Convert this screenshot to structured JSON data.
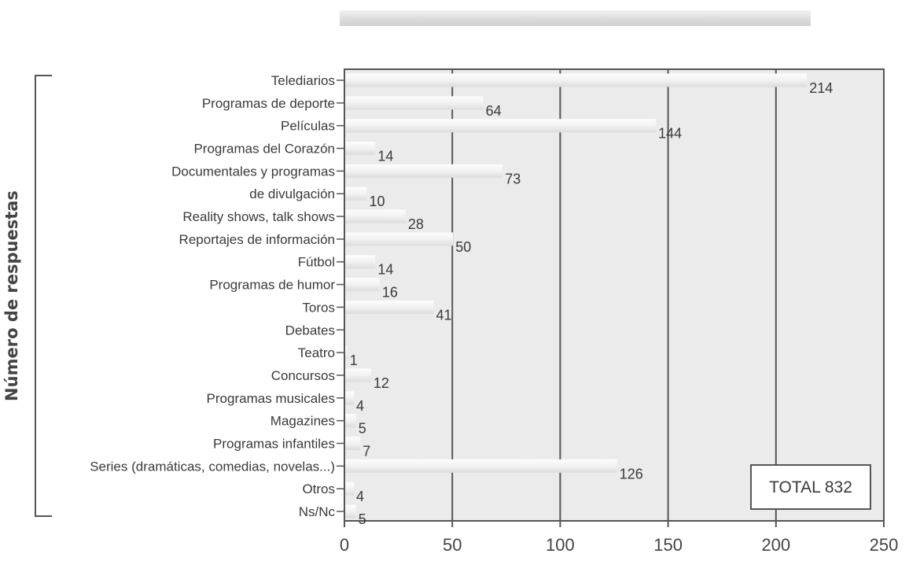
{
  "chart_data": {
    "type": "bar",
    "orientation": "horizontal",
    "title": "",
    "xlabel": "",
    "ylabel": "Número de respuestas",
    "xlim": [
      0,
      250
    ],
    "xticks": [
      0,
      50,
      100,
      150,
      200,
      250
    ],
    "grid": true,
    "categories": [
      "Telediarios",
      "Programas de deporte",
      "Películas",
      "Programas del Corazón",
      "Documentales y programas",
      "de divulgación",
      "Reality shows, talk shows",
      "Reportajes de información",
      "Fútbol",
      "Programas de humor",
      "Toros",
      "Debates",
      "Teatro",
      "Concursos",
      "Programas musicales",
      "Magazines",
      "Programas infantiles",
      "Series (dramáticas, comedias, novelas...)",
      "Otros",
      "Ns/Nc"
    ],
    "values": [
      214,
      64,
      144,
      14,
      73,
      10,
      28,
      50,
      14,
      16,
      41,
      null,
      1,
      12,
      4,
      5,
      7,
      126,
      4,
      5
    ],
    "annotation": "TOTAL 832",
    "colors": {
      "plot_background": "#ebebeb",
      "bar": "#f6f6f6",
      "grid": "#555555",
      "text": "#3a3a3a"
    }
  }
}
